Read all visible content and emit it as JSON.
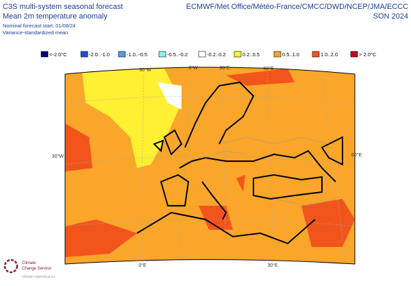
{
  "header": {
    "title_left": [
      "C3S multi-system seasonal forecast",
      "Mean 2m temperature anomaly"
    ],
    "subtitle_left": [
      "Nominal forecast start: 01/08/24",
      "Variance-standardized mean"
    ],
    "title_right": [
      "ECMWF/Met Office/Météo-France/CMCC/DWD/NCEP/JMA/ECCC",
      "SON 2024"
    ]
  },
  "legend": {
    "items": [
      {
        "label": "<-2.0°C",
        "color": "#00007f"
      },
      {
        "label": "-2.0..-1.0",
        "color": "#1f4fe0"
      },
      {
        "label": "-1.0..-0.5",
        "color": "#5a9be8"
      },
      {
        "label": "-0.5..-0.2",
        "color": "#8ff0f0"
      },
      {
        "label": "-0.2..0.2",
        "color": "#ffffff"
      },
      {
        "label": "0.2..0.5",
        "color": "#fff033"
      },
      {
        "label": "0.5..1.0",
        "color": "#f9a62a"
      },
      {
        "label": "1.0..2.0",
        "color": "#f2551c"
      },
      {
        "label": "> 2.0°C",
        "color": "#c8001a"
      }
    ]
  },
  "map": {
    "top_labels": [
      "30°W",
      "0°W",
      "30°E",
      "60°E"
    ],
    "left_label": "30°W",
    "right_label": "60°E",
    "bottom_labels": [
      "0°E",
      "30°E"
    ]
  },
  "logo": {
    "name": [
      "Climate",
      "Change Service"
    ],
    "url": "climate.copernicus.eu"
  }
}
